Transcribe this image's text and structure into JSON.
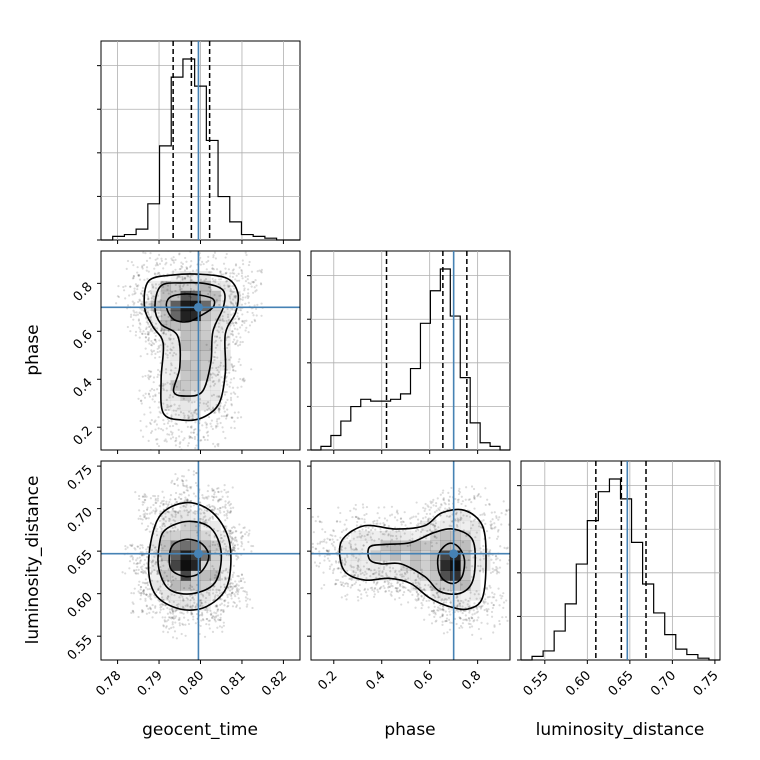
{
  "chart_data": {
    "type": "corner",
    "truth_color": "#4682b4",
    "grid": true,
    "parameters": [
      {
        "name": "geocent_time",
        "range": [
          0.776,
          0.824
        ],
        "ticks": [
          0.78,
          0.79,
          0.8,
          0.81,
          0.82
        ],
        "tick_labels": [
          "0.78",
          "0.79",
          "0.80",
          "0.81",
          "0.82"
        ],
        "truth": 0.7995,
        "quantiles": [
          0.7934,
          0.7978,
          0.8022
        ],
        "hist_edges_range": [
          0.776,
          0.824
        ],
        "hist_counts": [
          0,
          2,
          3,
          6,
          20,
          52,
          90,
          100,
          85,
          55,
          24,
          10,
          3,
          2,
          1,
          0,
          0
        ]
      },
      {
        "name": "phase",
        "range": [
          0.105,
          0.935
        ],
        "ticks": [
          0.2,
          0.4,
          0.6,
          0.8
        ],
        "tick_labels": [
          "0.2",
          "0.4",
          "0.6",
          "0.8"
        ],
        "truth": 0.7,
        "quantiles": [
          0.42,
          0.655,
          0.755
        ],
        "hist_edges_range": [
          0.105,
          0.935
        ],
        "hist_counts": [
          0,
          2,
          8,
          16,
          24,
          28,
          27,
          27,
          28,
          31,
          45,
          70,
          88,
          100,
          74,
          40,
          15,
          4,
          2,
          0
        ]
      },
      {
        "name": "luminosity_distance",
        "range": [
          0.522,
          0.756
        ],
        "ticks": [
          0.55,
          0.6,
          0.65,
          0.7,
          0.75
        ],
        "tick_labels": [
          "0.55",
          "0.60",
          "0.65",
          "0.70",
          "0.75"
        ],
        "truth": 0.647,
        "quantiles": [
          0.61,
          0.64,
          0.669
        ],
        "hist_edges_range": [
          0.522,
          0.756
        ],
        "hist_counts": [
          0,
          2,
          5,
          16,
          31,
          53,
          77,
          93,
          100,
          89,
          65,
          42,
          26,
          14,
          6,
          3,
          1,
          0
        ]
      }
    ],
    "panels_2d": [
      {
        "x": "geocent_time",
        "y": "phase",
        "truth": [
          0.7995,
          0.7
        ],
        "mode_density": [
          0.7974,
          0.69
        ],
        "contours": [
          [
            [
              0.7925,
              0.74
            ],
            [
              0.7955,
              0.755
            ],
            [
              0.7995,
              0.752
            ],
            [
              0.803,
              0.735
            ],
            [
              0.803,
              0.7
            ],
            [
              0.8,
              0.665
            ],
            [
              0.797,
              0.64
            ],
            [
              0.7935,
              0.65
            ],
            [
              0.7918,
              0.7
            ]
          ],
          [
            [
              0.7905,
              0.79
            ],
            [
              0.796,
              0.802
            ],
            [
              0.8015,
              0.798
            ],
            [
              0.8055,
              0.77
            ],
            [
              0.8055,
              0.7
            ],
            [
              0.803,
              0.6
            ],
            [
              0.8025,
              0.47
            ],
            [
              0.8005,
              0.35
            ],
            [
              0.7965,
              0.33
            ],
            [
              0.7935,
              0.35
            ],
            [
              0.795,
              0.45
            ],
            [
              0.7945,
              0.58
            ],
            [
              0.7905,
              0.63
            ],
            [
              0.789,
              0.7
            ]
          ],
          [
            [
              0.7875,
              0.81
            ],
            [
              0.7935,
              0.835
            ],
            [
              0.8,
              0.838
            ],
            [
              0.8065,
              0.82
            ],
            [
              0.809,
              0.76
            ],
            [
              0.8085,
              0.68
            ],
            [
              0.806,
              0.59
            ],
            [
              0.806,
              0.43
            ],
            [
              0.8045,
              0.3
            ],
            [
              0.8005,
              0.24
            ],
            [
              0.7955,
              0.23
            ],
            [
              0.791,
              0.26
            ],
            [
              0.7905,
              0.4
            ],
            [
              0.791,
              0.55
            ],
            [
              0.7885,
              0.62
            ],
            [
              0.7865,
              0.7
            ]
          ]
        ]
      },
      {
        "x": "geocent_time",
        "y": "luminosity_distance",
        "truth": [
          0.7995,
          0.647
        ],
        "mode_density": [
          0.7968,
          0.637
        ],
        "contours": [
          [
            [
              0.7935,
              0.658
            ],
            [
              0.797,
              0.664
            ],
            [
              0.8005,
              0.658
            ],
            [
              0.802,
              0.643
            ],
            [
              0.8,
              0.625
            ],
            [
              0.7965,
              0.62
            ],
            [
              0.793,
              0.628
            ],
            [
              0.7925,
              0.645
            ]
          ],
          [
            [
              0.7915,
              0.675
            ],
            [
              0.797,
              0.685
            ],
            [
              0.8025,
              0.677
            ],
            [
              0.805,
              0.648
            ],
            [
              0.8035,
              0.613
            ],
            [
              0.798,
              0.6
            ],
            [
              0.7925,
              0.605
            ],
            [
              0.79,
              0.628
            ],
            [
              0.79,
              0.655
            ]
          ],
          [
            [
              0.79,
              0.69
            ],
            [
              0.7965,
              0.707
            ],
            [
              0.803,
              0.695
            ],
            [
              0.807,
              0.66
            ],
            [
              0.8065,
              0.61
            ],
            [
              0.8015,
              0.585
            ],
            [
              0.795,
              0.582
            ],
            [
              0.789,
              0.6
            ],
            [
              0.7875,
              0.64
            ]
          ]
        ]
      },
      {
        "x": "phase",
        "y": "luminosity_distance",
        "truth": [
          0.7,
          0.647
        ],
        "mode_density": [
          0.7,
          0.634
        ],
        "contours": [
          [
            [
              0.64,
              0.648
            ],
            [
              0.68,
              0.659
            ],
            [
              0.72,
              0.655
            ],
            [
              0.745,
              0.64
            ],
            [
              0.735,
              0.62
            ],
            [
              0.7,
              0.612
            ],
            [
              0.655,
              0.617
            ],
            [
              0.635,
              0.63
            ]
          ],
          [
            [
              0.35,
              0.655
            ],
            [
              0.42,
              0.658
            ],
            [
              0.52,
              0.66
            ],
            [
              0.62,
              0.672
            ],
            [
              0.7,
              0.676
            ],
            [
              0.775,
              0.665
            ],
            [
              0.79,
              0.64
            ],
            [
              0.775,
              0.612
            ],
            [
              0.72,
              0.6
            ],
            [
              0.64,
              0.603
            ],
            [
              0.58,
              0.62
            ],
            [
              0.48,
              0.635
            ],
            [
              0.4,
              0.635
            ],
            [
              0.35,
              0.64
            ]
          ],
          [
            [
              0.24,
              0.665
            ],
            [
              0.33,
              0.68
            ],
            [
              0.46,
              0.676
            ],
            [
              0.58,
              0.68
            ],
            [
              0.65,
              0.695
            ],
            [
              0.745,
              0.698
            ],
            [
              0.82,
              0.68
            ],
            [
              0.835,
              0.64
            ],
            [
              0.82,
              0.595
            ],
            [
              0.76,
              0.582
            ],
            [
              0.68,
              0.585
            ],
            [
              0.6,
              0.595
            ],
            [
              0.52,
              0.612
            ],
            [
              0.43,
              0.618
            ],
            [
              0.33,
              0.616
            ],
            [
              0.25,
              0.625
            ],
            [
              0.225,
              0.645
            ]
          ]
        ]
      }
    ]
  }
}
